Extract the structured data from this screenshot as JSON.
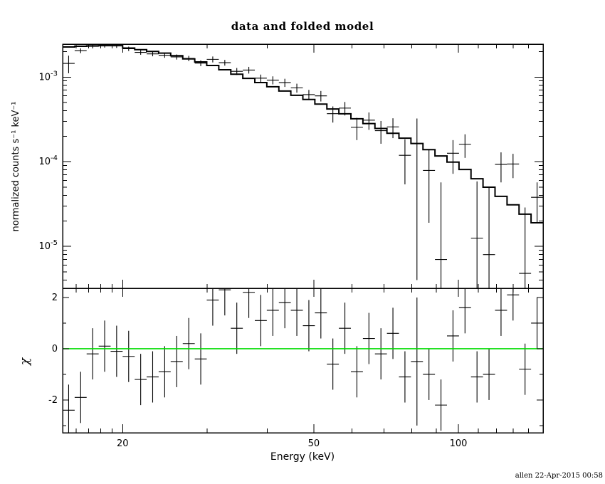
{
  "title": "data and folded model",
  "xlabel": "Energy (keV)",
  "ylabel_top": "normalized counts s⁻¹ keV⁻¹",
  "ylabel_bottom": "χ",
  "credit": "allen 22-Apr-2015 00:58",
  "colors": {
    "foreground": "#000000",
    "model_line": "#000000",
    "data_cross": "#000000",
    "zero_line": "#00dd00",
    "background": "#ffffff"
  },
  "chart_data": [
    {
      "name": "spectrum-panel",
      "type": "line",
      "description": "X-ray count spectrum: data crosses with errors and stepped folded model",
      "xscale": "log",
      "yscale": "log",
      "xlim": [
        15,
        150.09
      ],
      "ylim": [
        3.2e-06,
        0.00245
      ],
      "xticks_labeled": [
        20,
        50,
        100
      ],
      "xticks_minor": [
        16,
        17,
        18,
        19,
        30,
        40,
        60,
        70,
        80,
        90,
        110,
        120,
        130,
        140
      ],
      "yticks_labeled": [
        0.001,
        0.0001,
        1e-05
      ],
      "yticks_minor": [
        4e-06,
        5e-06,
        6e-06,
        7e-06,
        8e-06,
        9e-06,
        2e-05,
        3e-05,
        4e-05,
        5e-05,
        6e-05,
        7e-05,
        8e-05,
        9e-05,
        0.0002,
        0.0003,
        0.0004,
        0.0005,
        0.0006,
        0.0007,
        0.0008,
        0.0009,
        0.002
      ],
      "bin_edges": [
        15.0,
        15.89,
        16.83,
        17.83,
        18.88,
        20.0,
        21.19,
        22.44,
        23.77,
        25.18,
        26.68,
        28.26,
        29.93,
        31.71,
        33.59,
        35.58,
        37.69,
        39.92,
        42.29,
        44.79,
        47.45,
        50.26,
        53.24,
        56.39,
        59.74,
        63.28,
        67.03,
        71.0,
        75.21,
        79.66,
        84.39,
        89.39,
        94.69,
        100.3,
        106.24,
        112.54,
        119.21,
        126.28,
        133.76,
        141.69,
        150.09
      ],
      "model": [
        0.00227,
        0.00231,
        0.00234,
        0.00235,
        0.00235,
        0.0022,
        0.00211,
        0.00201,
        0.00192,
        0.00179,
        0.00164,
        0.00151,
        0.00137,
        0.00122,
        0.00108,
        0.000966,
        0.000861,
        0.000768,
        0.000684,
        0.00061,
        0.000544,
        0.000479,
        0.00042,
        0.000368,
        0.000322,
        0.000282,
        0.000247,
        0.000217,
        0.00019,
        0.000164,
        0.000139,
        0.000117,
        9.9e-05,
        8.1e-05,
        6.3e-05,
        5e-05,
        3.9e-05,
        3.1e-05,
        2.4e-05,
        1.9e-05
      ],
      "data": [
        0.00145,
        0.00205,
        0.00231,
        0.00236,
        0.00234,
        0.00216,
        0.00196,
        0.00188,
        0.00181,
        0.00173,
        0.00166,
        0.00146,
        0.00162,
        0.00148,
        0.00117,
        0.00121,
        0.00097,
        0.00092,
        0.00086,
        0.000745,
        0.00062,
        0.0006,
        0.00037,
        0.00043,
        0.000255,
        0.00031,
        0.000233,
        0.000258,
        0.000119,
        0.000164,
        7.9e-05,
        7e-06,
        0.000126,
        0.000161,
        1.25e-05,
        8e-06,
        9.3e-05,
        9.4e-05,
        4.8e-06,
        3.8e-05
      ],
      "data_err": [
        0.00034,
        0.000135,
        0.00013,
        0.00013,
        0.00013,
        0.00013,
        0.000125,
        0.00012,
        0.00012,
        0.00012,
        0.00012,
        0.000115,
        0.00013,
        0.000115,
        0.00011,
        0.00011,
        0.0001,
        0.0001,
        9.5e-05,
        9e-05,
        8.5e-05,
        8.5e-05,
        8e-05,
        7.8e-05,
        7.5e-05,
        7.2e-05,
        7e-05,
        6.8e-05,
        6.5e-05,
        0.00016,
        6e-05,
        5e-05,
        5.4e-05,
        5e-05,
        4.6e-05,
        4.2e-05,
        3.6e-05,
        3e-05,
        2.4e-05,
        1.9e-05
      ]
    },
    {
      "name": "residuals-panel",
      "type": "scatter",
      "description": "chi residuals (data - model) / error with green zero line",
      "xscale": "log",
      "yscale": "linear",
      "ylim": [
        -3.28,
        2.36
      ],
      "yticks_labeled": [
        -2,
        0,
        2
      ],
      "yticks_minor": [
        -3,
        -1,
        1
      ],
      "zero_line": 0,
      "chi": [
        -2.4,
        -1.9,
        -0.2,
        0.1,
        -0.1,
        -0.3,
        -1.2,
        -1.1,
        -0.9,
        -0.5,
        0.2,
        -0.4,
        1.9,
        2.3,
        0.8,
        2.2,
        1.1,
        1.5,
        1.8,
        1.5,
        0.9,
        1.4,
        -0.6,
        0.8,
        -0.9,
        0.4,
        -0.2,
        0.6,
        -1.1,
        -0.5,
        -1.0,
        -2.2,
        0.5,
        1.6,
        -1.1,
        -1.0,
        1.5,
        2.1,
        -0.8,
        1.0
      ],
      "chi_err": [
        1,
        1,
        1,
        1,
        1,
        1,
        1,
        1,
        1,
        1,
        1,
        1,
        1,
        1,
        1,
        1,
        1,
        1,
        1,
        1,
        1,
        1,
        1,
        1,
        1,
        1,
        1,
        1,
        1,
        2.5,
        1,
        1,
        1,
        1,
        1,
        1,
        1,
        1,
        1,
        1
      ]
    }
  ]
}
